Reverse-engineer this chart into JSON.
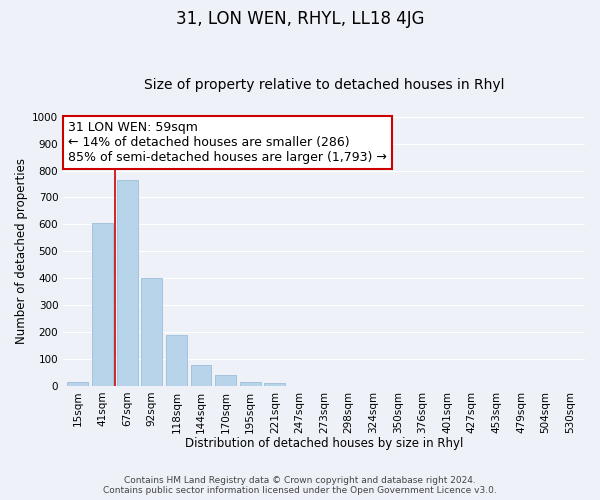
{
  "title": "31, LON WEN, RHYL, LL18 4JG",
  "subtitle": "Size of property relative to detached houses in Rhyl",
  "xlabel": "Distribution of detached houses by size in Rhyl",
  "ylabel": "Number of detached properties",
  "footer_lines": [
    "Contains HM Land Registry data © Crown copyright and database right 2024.",
    "Contains public sector information licensed under the Open Government Licence v3.0."
  ],
  "bar_labels": [
    "15sqm",
    "41sqm",
    "67sqm",
    "92sqm",
    "118sqm",
    "144sqm",
    "170sqm",
    "195sqm",
    "221sqm",
    "247sqm",
    "273sqm",
    "298sqm",
    "324sqm",
    "350sqm",
    "376sqm",
    "401sqm",
    "427sqm",
    "453sqm",
    "479sqm",
    "504sqm",
    "530sqm"
  ],
  "bar_values": [
    15,
    605,
    765,
    400,
    190,
    78,
    40,
    15,
    12,
    0,
    0,
    0,
    0,
    0,
    0,
    0,
    0,
    0,
    0,
    0,
    0
  ],
  "bar_color": "#b8d4ea",
  "bar_edge_color": "#9dbdd8",
  "vline_color": "#cc0000",
  "vline_x": 1.5,
  "annotation_text_line1": "31 LON WEN: 59sqm",
  "annotation_text_line2": "← 14% of detached houses are smaller (286)",
  "annotation_text_line3": "85% of semi-detached houses are larger (1,793) →",
  "annotation_box_color": "#ffffff",
  "annotation_box_edge": "#cc0000",
  "ylim": [
    0,
    1000
  ],
  "yticks": [
    0,
    100,
    200,
    300,
    400,
    500,
    600,
    700,
    800,
    900,
    1000
  ],
  "background_color": "#eef2f8",
  "grid_color": "#ffffff",
  "title_fontsize": 12,
  "subtitle_fontsize": 10,
  "axis_label_fontsize": 8.5,
  "tick_fontsize": 7.5,
  "annotation_fontsize": 9,
  "footer_fontsize": 6.5
}
